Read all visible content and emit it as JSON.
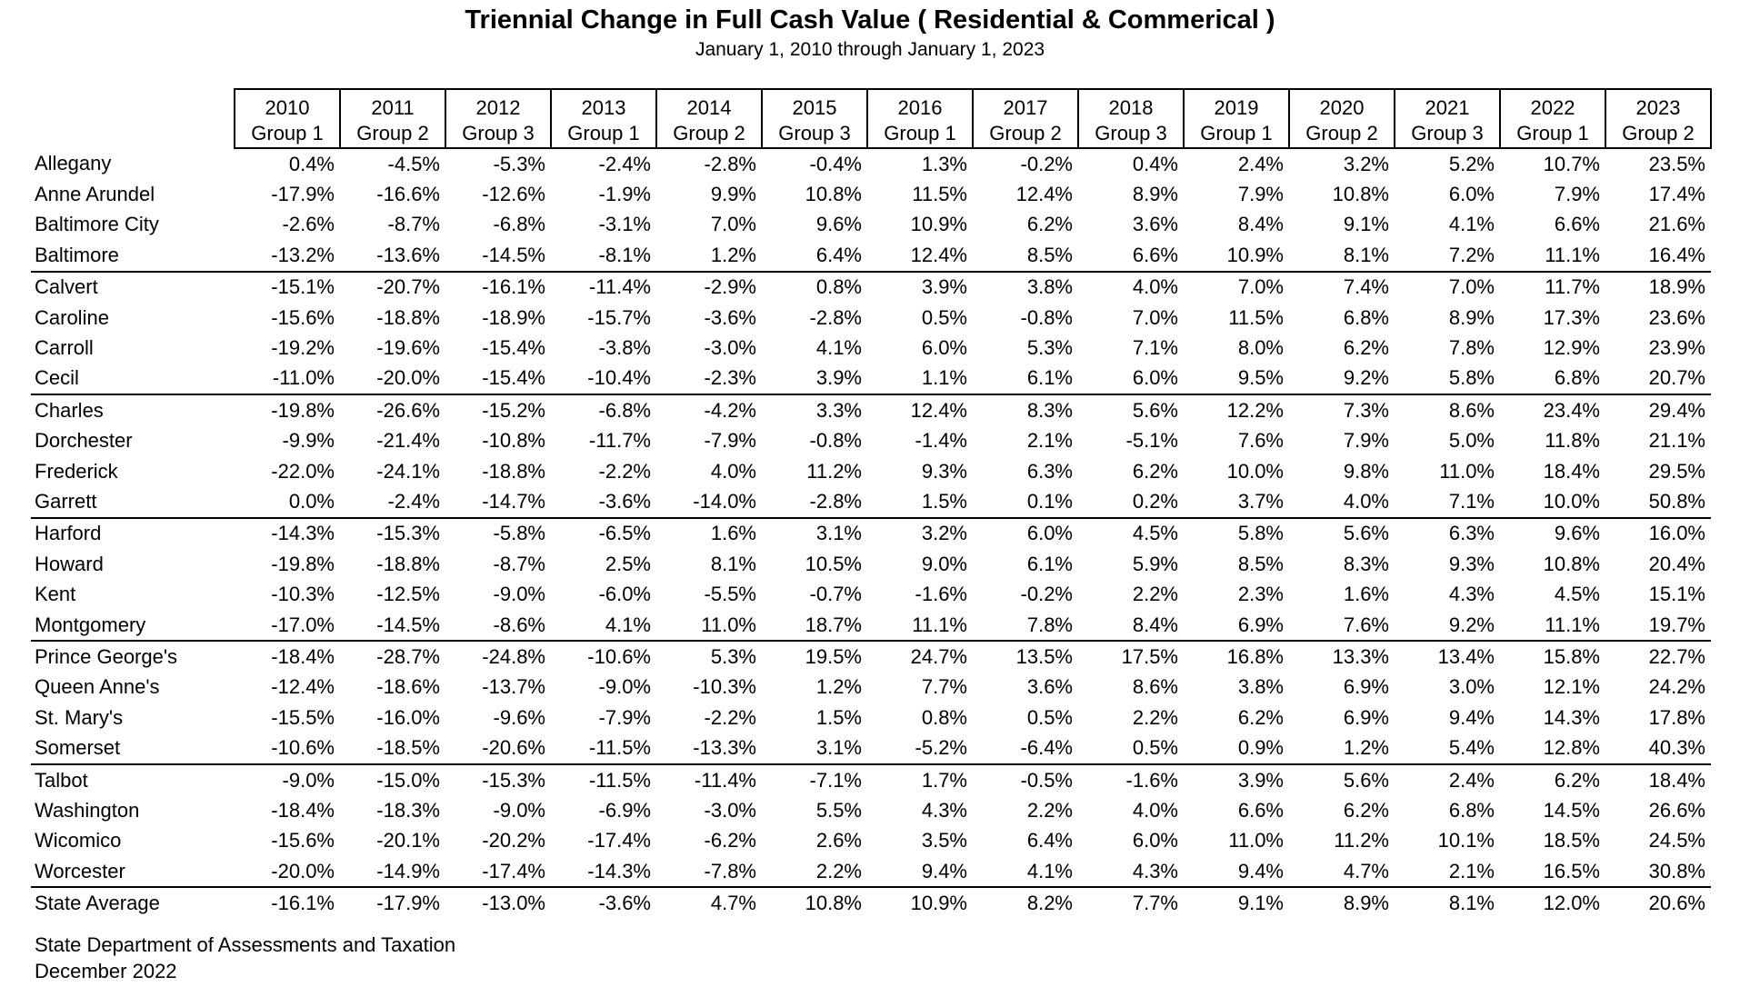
{
  "title": "Triennial Change in Full Cash Value ( Residential & Commerical )",
  "subtitle": "January 1, 2010 through January 1, 2023",
  "columns": [
    {
      "year": "2010",
      "group": "Group 1"
    },
    {
      "year": "2011",
      "group": "Group 2"
    },
    {
      "year": "2012",
      "group": "Group 3"
    },
    {
      "year": "2013",
      "group": "Group 1"
    },
    {
      "year": "2014",
      "group": "Group 2"
    },
    {
      "year": "2015",
      "group": "Group 3"
    },
    {
      "year": "2016",
      "group": "Group 1"
    },
    {
      "year": "2017",
      "group": "Group 2"
    },
    {
      "year": "2018",
      "group": "Group 3"
    },
    {
      "year": "2019",
      "group": "Group 1"
    },
    {
      "year": "2020",
      "group": "Group 2"
    },
    {
      "year": "2021",
      "group": "Group 3"
    },
    {
      "year": "2022",
      "group": "Group 1"
    },
    {
      "year": "2023",
      "group": "Group 2"
    }
  ],
  "rows": [
    {
      "county": "Allegany",
      "values": [
        "0.4%",
        "-4.5%",
        "-5.3%",
        "-2.4%",
        "-2.8%",
        "-0.4%",
        "1.3%",
        "-0.2%",
        "0.4%",
        "2.4%",
        "3.2%",
        "5.2%",
        "10.7%",
        "23.5%"
      ]
    },
    {
      "county": "Anne Arundel",
      "values": [
        "-17.9%",
        "-16.6%",
        "-12.6%",
        "-1.9%",
        "9.9%",
        "10.8%",
        "11.5%",
        "12.4%",
        "8.9%",
        "7.9%",
        "10.8%",
        "6.0%",
        "7.9%",
        "17.4%"
      ]
    },
    {
      "county": "Baltimore City",
      "values": [
        "-2.6%",
        "-8.7%",
        "-6.8%",
        "-3.1%",
        "7.0%",
        "9.6%",
        "10.9%",
        "6.2%",
        "3.6%",
        "8.4%",
        "9.1%",
        "4.1%",
        "6.6%",
        "21.6%"
      ]
    },
    {
      "county": "Baltimore",
      "values": [
        "-13.2%",
        "-13.6%",
        "-14.5%",
        "-8.1%",
        "1.2%",
        "6.4%",
        "12.4%",
        "8.5%",
        "6.6%",
        "10.9%",
        "8.1%",
        "7.2%",
        "11.1%",
        "16.4%"
      ]
    },
    {
      "county": "Calvert",
      "values": [
        "-15.1%",
        "-20.7%",
        "-16.1%",
        "-11.4%",
        "-2.9%",
        "0.8%",
        "3.9%",
        "3.8%",
        "4.0%",
        "7.0%",
        "7.4%",
        "7.0%",
        "11.7%",
        "18.9%"
      ]
    },
    {
      "county": "Caroline",
      "values": [
        "-15.6%",
        "-18.8%",
        "-18.9%",
        "-15.7%",
        "-3.6%",
        "-2.8%",
        "0.5%",
        "-0.8%",
        "7.0%",
        "11.5%",
        "6.8%",
        "8.9%",
        "17.3%",
        "23.6%"
      ]
    },
    {
      "county": "Carroll",
      "values": [
        "-19.2%",
        "-19.6%",
        "-15.4%",
        "-3.8%",
        "-3.0%",
        "4.1%",
        "6.0%",
        "5.3%",
        "7.1%",
        "8.0%",
        "6.2%",
        "7.8%",
        "12.9%",
        "23.9%"
      ]
    },
    {
      "county": "Cecil",
      "values": [
        "-11.0%",
        "-20.0%",
        "-15.4%",
        "-10.4%",
        "-2.3%",
        "3.9%",
        "1.1%",
        "6.1%",
        "6.0%",
        "9.5%",
        "9.2%",
        "5.8%",
        "6.8%",
        "20.7%"
      ]
    },
    {
      "county": "Charles",
      "values": [
        "-19.8%",
        "-26.6%",
        "-15.2%",
        "-6.8%",
        "-4.2%",
        "3.3%",
        "12.4%",
        "8.3%",
        "5.6%",
        "12.2%",
        "7.3%",
        "8.6%",
        "23.4%",
        "29.4%"
      ]
    },
    {
      "county": "Dorchester",
      "values": [
        "-9.9%",
        "-21.4%",
        "-10.8%",
        "-11.7%",
        "-7.9%",
        "-0.8%",
        "-1.4%",
        "2.1%",
        "-5.1%",
        "7.6%",
        "7.9%",
        "5.0%",
        "11.8%",
        "21.1%"
      ]
    },
    {
      "county": "Frederick",
      "values": [
        "-22.0%",
        "-24.1%",
        "-18.8%",
        "-2.2%",
        "4.0%",
        "11.2%",
        "9.3%",
        "6.3%",
        "6.2%",
        "10.0%",
        "9.8%",
        "11.0%",
        "18.4%",
        "29.5%"
      ]
    },
    {
      "county": "Garrett",
      "values": [
        "0.0%",
        "-2.4%",
        "-14.7%",
        "-3.6%",
        "-14.0%",
        "-2.8%",
        "1.5%",
        "0.1%",
        "0.2%",
        "3.7%",
        "4.0%",
        "7.1%",
        "10.0%",
        "50.8%"
      ]
    },
    {
      "county": "Harford",
      "values": [
        "-14.3%",
        "-15.3%",
        "-5.8%",
        "-6.5%",
        "1.6%",
        "3.1%",
        "3.2%",
        "6.0%",
        "4.5%",
        "5.8%",
        "5.6%",
        "6.3%",
        "9.6%",
        "16.0%"
      ]
    },
    {
      "county": "Howard",
      "values": [
        "-19.8%",
        "-18.8%",
        "-8.7%",
        "2.5%",
        "8.1%",
        "10.5%",
        "9.0%",
        "6.1%",
        "5.9%",
        "8.5%",
        "8.3%",
        "9.3%",
        "10.8%",
        "20.4%"
      ]
    },
    {
      "county": "Kent",
      "values": [
        "-10.3%",
        "-12.5%",
        "-9.0%",
        "-6.0%",
        "-5.5%",
        "-0.7%",
        "-1.6%",
        "-0.2%",
        "2.2%",
        "2.3%",
        "1.6%",
        "4.3%",
        "4.5%",
        "15.1%"
      ]
    },
    {
      "county": "Montgomery",
      "values": [
        "-17.0%",
        "-14.5%",
        "-8.6%",
        "4.1%",
        "11.0%",
        "18.7%",
        "11.1%",
        "7.8%",
        "8.4%",
        "6.9%",
        "7.6%",
        "9.2%",
        "11.1%",
        "19.7%"
      ]
    },
    {
      "county": "Prince George's",
      "values": [
        "-18.4%",
        "-28.7%",
        "-24.8%",
        "-10.6%",
        "5.3%",
        "19.5%",
        "24.7%",
        "13.5%",
        "17.5%",
        "16.8%",
        "13.3%",
        "13.4%",
        "15.8%",
        "22.7%"
      ]
    },
    {
      "county": "Queen Anne's",
      "values": [
        "-12.4%",
        "-18.6%",
        "-13.7%",
        "-9.0%",
        "-10.3%",
        "1.2%",
        "7.7%",
        "3.6%",
        "8.6%",
        "3.8%",
        "6.9%",
        "3.0%",
        "12.1%",
        "24.2%"
      ]
    },
    {
      "county": "St. Mary's",
      "values": [
        "-15.5%",
        "-16.0%",
        "-9.6%",
        "-7.9%",
        "-2.2%",
        "1.5%",
        "0.8%",
        "0.5%",
        "2.2%",
        "6.2%",
        "6.9%",
        "9.4%",
        "14.3%",
        "17.8%"
      ]
    },
    {
      "county": "Somerset",
      "values": [
        "-10.6%",
        "-18.5%",
        "-20.6%",
        "-11.5%",
        "-13.3%",
        "3.1%",
        "-5.2%",
        "-6.4%",
        "0.5%",
        "0.9%",
        "1.2%",
        "5.4%",
        "12.8%",
        "40.3%"
      ]
    },
    {
      "county": "Talbot",
      "values": [
        "-9.0%",
        "-15.0%",
        "-15.3%",
        "-11.5%",
        "-11.4%",
        "-7.1%",
        "1.7%",
        "-0.5%",
        "-1.6%",
        "3.9%",
        "5.6%",
        "2.4%",
        "6.2%",
        "18.4%"
      ]
    },
    {
      "county": "Washington",
      "values": [
        "-18.4%",
        "-18.3%",
        "-9.0%",
        "-6.9%",
        "-3.0%",
        "5.5%",
        "4.3%",
        "2.2%",
        "4.0%",
        "6.6%",
        "6.2%",
        "6.8%",
        "14.5%",
        "26.6%"
      ]
    },
    {
      "county": "Wicomico",
      "values": [
        "-15.6%",
        "-20.1%",
        "-20.2%",
        "-17.4%",
        "-6.2%",
        "2.6%",
        "3.5%",
        "6.4%",
        "6.0%",
        "11.0%",
        "11.2%",
        "10.1%",
        "18.5%",
        "24.5%"
      ]
    },
    {
      "county": "Worcester",
      "values": [
        "-20.0%",
        "-14.9%",
        "-17.4%",
        "-14.3%",
        "-7.8%",
        "2.2%",
        "9.4%",
        "4.1%",
        "4.3%",
        "9.4%",
        "4.7%",
        "2.1%",
        "16.5%",
        "30.8%"
      ]
    },
    {
      "county": "State Average",
      "values": [
        "-16.1%",
        "-17.9%",
        "-13.0%",
        "-3.6%",
        "4.7%",
        "10.8%",
        "10.9%",
        "8.2%",
        "7.7%",
        "9.1%",
        "8.9%",
        "8.1%",
        "12.0%",
        "20.6%"
      ]
    }
  ],
  "footer": {
    "line1": "State Department of Assessments and Taxation",
    "line2": "December 2022"
  }
}
